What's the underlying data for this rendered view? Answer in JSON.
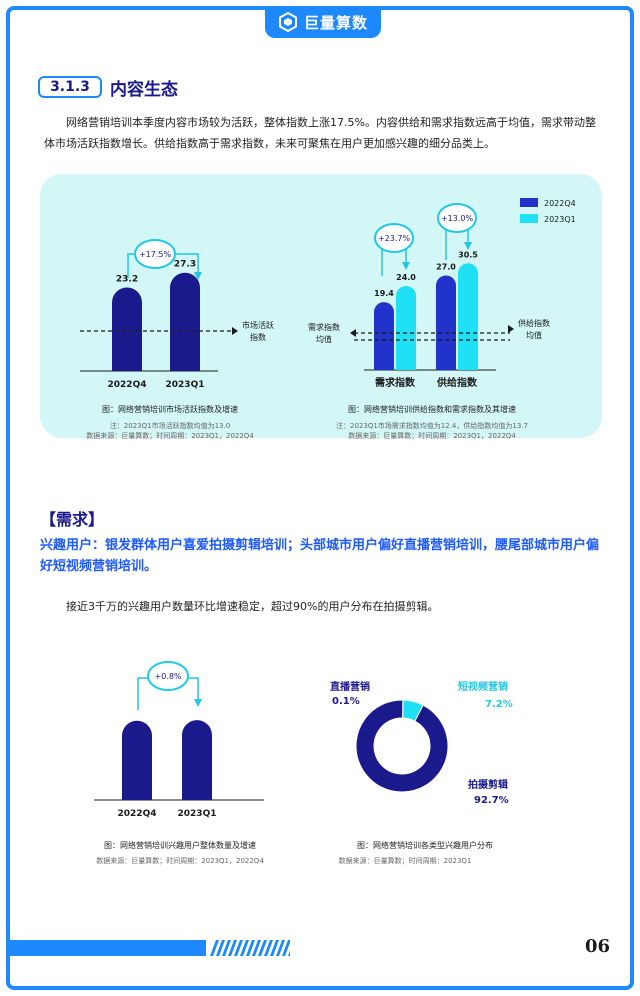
{
  "brand": {
    "name": "巨量算数",
    "accent": "#1e88ff",
    "navy": "#1a1a8c",
    "cyan": "#00d4f0"
  },
  "section": {
    "number": "3.1.3",
    "title": "内容生态",
    "paragraph": "网络营销培训本季度内容市场较为活跃，整体指数上涨17.5%。内容供给和需求指数远高于均值，需求带动整体市场活跃指数增长。供给指数高于需求指数，未来可聚焦在用户更加感兴趣的细分品类上。"
  },
  "chart1": {
    "caption": "图：网络营销培训市场活跃指数及增速",
    "note1": "注：2023Q1市场活跃指数均值为13.0",
    "note2": "数据来源：巨量算数；时间周期：2023Q1，2022Q4",
    "growth_label": "+17.5%",
    "avg_label_line1": "市场活跃",
    "avg_label_line2": "指数"
  },
  "chart2": {
    "caption": "图：网络营销培训供给指数和需求指数及其增速",
    "note1": "注：2023Q1市场需求指数均值为12.4，供给指数均值为13.7",
    "note2": "数据来源：巨量算数；时间周期：2023Q1，2022Q4",
    "legend": [
      "2022Q4",
      "2023Q1"
    ],
    "growth_labels": [
      "+23.7%",
      "+13.0%"
    ],
    "left_avg_line1": "需求指数",
    "left_avg_line2": "均值",
    "right_avg_line1": "供给指数",
    "right_avg_line2": "均值"
  },
  "demand": {
    "heading": "【需求】",
    "highlight": "兴趣用户：银发群体用户喜爱拍摄剪辑培训；头部城市用户偏好直播营销培训，腰尾部城市用户偏好短视频营销培训。",
    "paragraph": "接近3千万的兴趣用户数量环比增速稳定，超过90%的用户分布在拍摄剪辑。"
  },
  "chart3": {
    "caption": "图：网络营销培训兴趣用户整体数量及增速",
    "note": "数据来源：巨量算数；时间周期：2023Q1，2022Q4",
    "growth_label": "+0.8%"
  },
  "chart4": {
    "caption": "图：网络营销培训各类型兴趣用户分布",
    "note": "数据来源：巨量算数；时间周期：2023Q1"
  },
  "page_number": "06",
  "chart_data": [
    {
      "type": "bar",
      "categories": [
        "2022Q4",
        "2023Q1"
      ],
      "values": [
        23.2,
        27.3
      ],
      "ylim": [
        0,
        30
      ],
      "average": 13.0,
      "colors": [
        "#1a1a8c",
        "#1a1a8c"
      ]
    },
    {
      "type": "bar",
      "categories": [
        "需求指数",
        "供给指数"
      ],
      "series": [
        {
          "name": "2022Q4",
          "values": [
            19.4,
            27.0
          ],
          "color": "#2233cc"
        },
        {
          "name": "2023Q1",
          "values": [
            24.0,
            30.5
          ],
          "color": "#1fe0f5"
        }
      ],
      "ylim": [
        0,
        32
      ],
      "averages": [
        12.4,
        13.7
      ]
    },
    {
      "type": "bar",
      "categories": [
        "2022Q4",
        "2023Q1"
      ],
      "values": [
        100,
        100.8
      ],
      "colors": [
        "#1a1a8c",
        "#1a1a8c"
      ]
    },
    {
      "type": "pie",
      "donut": true,
      "slices": [
        {
          "label": "拍摄剪辑",
          "value": 92.7,
          "display": "92.7%",
          "color": "#1a1a8c"
        },
        {
          "label": "直播营销",
          "value": 0.1,
          "display": "0.1%",
          "color": "#2a5bd7"
        },
        {
          "label": "短视频营销",
          "value": 7.2,
          "display": "7.2%",
          "color": "#1fe0f5"
        }
      ]
    }
  ]
}
